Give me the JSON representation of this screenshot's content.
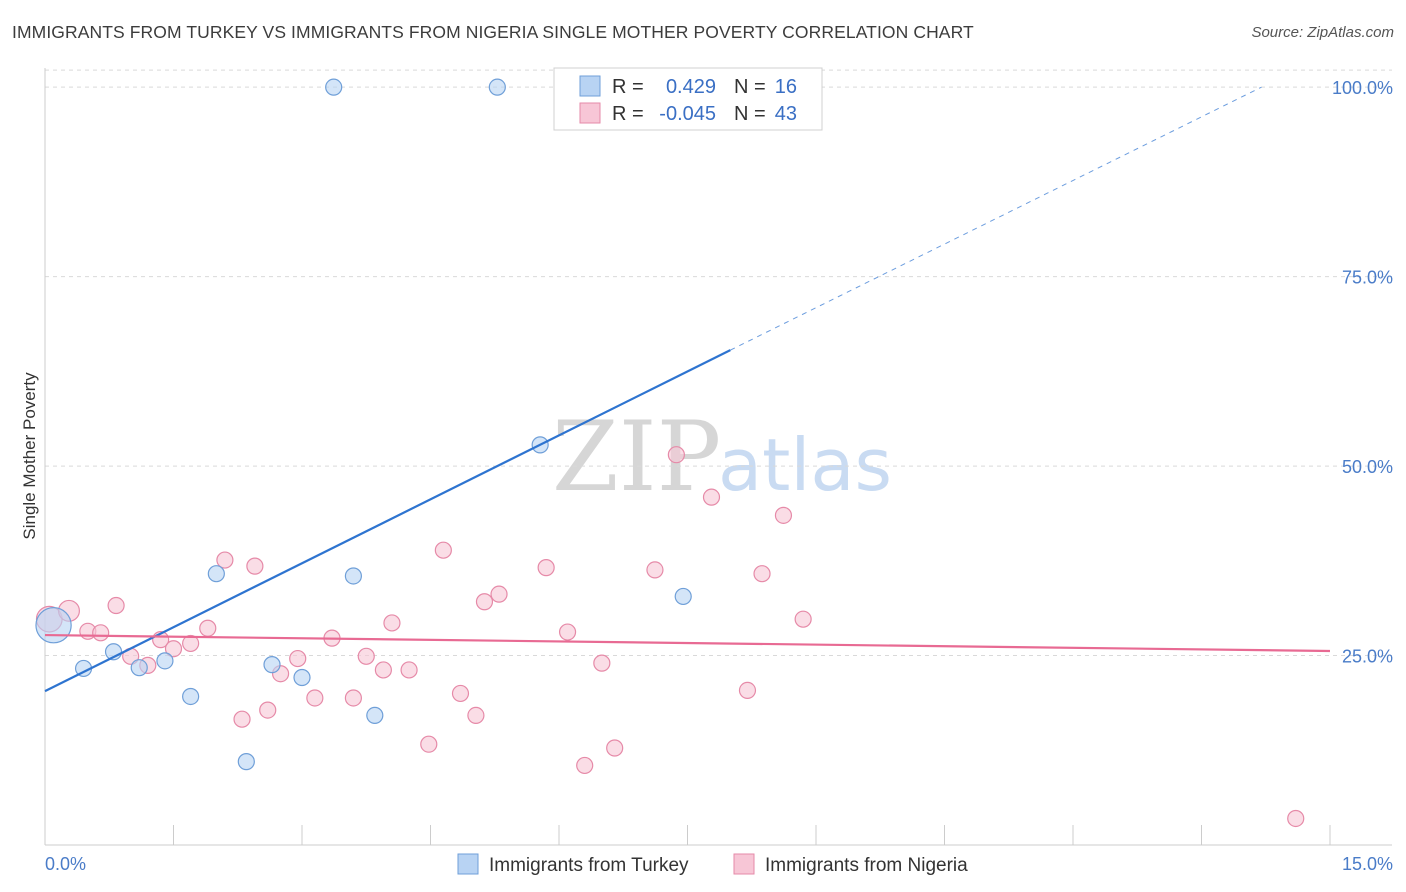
{
  "title": "IMMIGRANTS FROM TURKEY VS IMMIGRANTS FROM NIGERIA SINGLE MOTHER POVERTY CORRELATION CHART",
  "source": "Source: ZipAtlas.com",
  "watermark": {
    "zip": "ZIP",
    "atlas": "atlas"
  },
  "colors": {
    "turkey_fill": "#b8d3f3",
    "turkey_stroke": "#6f9fd8",
    "turkey_line": "#2e74d0",
    "nigeria_fill": "#f7c6d6",
    "nigeria_stroke": "#e68aa8",
    "nigeria_line": "#e86a93",
    "tick_text": "#4a7cc8",
    "grid": "#d9d9d9"
  },
  "legend": {
    "turkey": {
      "r_label": "R =",
      "r_value": "0.429",
      "n_label": "N =",
      "n_value": "16"
    },
    "nigeria": {
      "r_label": "R =",
      "r_value": "-0.045",
      "n_label": "N =",
      "n_value": "43"
    }
  },
  "chart_data": {
    "type": "scatter",
    "title": "IMMIGRANTS FROM TURKEY VS IMMIGRANTS FROM NIGERIA SINGLE MOTHER POVERTY CORRELATION CHART",
    "xlabel": "",
    "ylabel": "Single Mother Poverty",
    "xlim": [
      0,
      15
    ],
    "ylim": [
      0,
      102
    ],
    "x_tick_labels": [
      "0.0%",
      "15.0%"
    ],
    "y_ticks": [
      25,
      50,
      75,
      100
    ],
    "y_tick_labels": [
      "25.0%",
      "50.0%",
      "75.0%",
      "100.0%"
    ],
    "grid": true,
    "legend_position": "bottom",
    "series": [
      {
        "name": "Immigrants from Turkey",
        "points": [
          [
            0.1,
            29.0,
            2.2
          ],
          [
            0.45,
            23.3,
            1
          ],
          [
            0.8,
            25.5,
            1
          ],
          [
            1.1,
            23.4,
            1
          ],
          [
            1.4,
            24.3,
            1
          ],
          [
            1.7,
            19.6,
            1
          ],
          [
            2.0,
            35.8,
            1
          ],
          [
            2.35,
            11.0,
            1
          ],
          [
            2.65,
            23.8,
            1
          ],
          [
            3.0,
            22.1,
            1
          ],
          [
            3.37,
            100.0,
            1
          ],
          [
            3.6,
            35.5,
            1
          ],
          [
            3.85,
            17.1,
            1
          ],
          [
            5.28,
            100.0,
            1
          ],
          [
            5.78,
            52.8,
            1
          ],
          [
            7.45,
            32.8,
            1
          ]
        ],
        "trend": {
          "x0": 0,
          "y0": 20.3,
          "x1": 8.0,
          "y1": 65.3,
          "dashed_to_x": 14.2,
          "dashed_to_y": 100.0
        }
      },
      {
        "name": "Immigrants from Nigeria",
        "points": [
          [
            0.05,
            29.8,
            1.6
          ],
          [
            0.28,
            30.9,
            1.3
          ],
          [
            0.5,
            28.2,
            1
          ],
          [
            0.65,
            28.0,
            1
          ],
          [
            0.83,
            31.6,
            1
          ],
          [
            1.0,
            24.9,
            1
          ],
          [
            1.2,
            23.7,
            1
          ],
          [
            1.35,
            27.1,
            1
          ],
          [
            1.5,
            25.9,
            1
          ],
          [
            1.7,
            26.6,
            1
          ],
          [
            1.9,
            28.6,
            1
          ],
          [
            2.1,
            37.6,
            1
          ],
          [
            2.3,
            16.6,
            1
          ],
          [
            2.45,
            36.8,
            1
          ],
          [
            2.6,
            17.8,
            1
          ],
          [
            2.75,
            22.6,
            1
          ],
          [
            2.95,
            24.6,
            1
          ],
          [
            3.15,
            19.4,
            1
          ],
          [
            3.35,
            27.3,
            1
          ],
          [
            3.6,
            19.4,
            1
          ],
          [
            3.75,
            24.9,
            1
          ],
          [
            3.95,
            23.1,
            1
          ],
          [
            4.05,
            29.3,
            1
          ],
          [
            4.25,
            23.1,
            1
          ],
          [
            4.48,
            13.3,
            1
          ],
          [
            4.65,
            38.9,
            1
          ],
          [
            4.85,
            20.0,
            1
          ],
          [
            5.03,
            17.1,
            1
          ],
          [
            5.13,
            32.1,
            1
          ],
          [
            5.3,
            33.1,
            1
          ],
          [
            5.85,
            36.6,
            1
          ],
          [
            6.1,
            28.1,
            1
          ],
          [
            6.3,
            10.5,
            1
          ],
          [
            6.5,
            24.0,
            1
          ],
          [
            6.65,
            12.8,
            1
          ],
          [
            7.12,
            36.3,
            1
          ],
          [
            7.37,
            51.5,
            1
          ],
          [
            7.78,
            45.9,
            1
          ],
          [
            8.2,
            20.4,
            1
          ],
          [
            8.37,
            35.8,
            1
          ],
          [
            8.62,
            43.5,
            1
          ],
          [
            8.85,
            29.8,
            1
          ],
          [
            14.6,
            3.5,
            1
          ]
        ],
        "trend": {
          "x0": 0,
          "y0": 27.7,
          "x1": 15.0,
          "y1": 25.6
        }
      }
    ]
  }
}
